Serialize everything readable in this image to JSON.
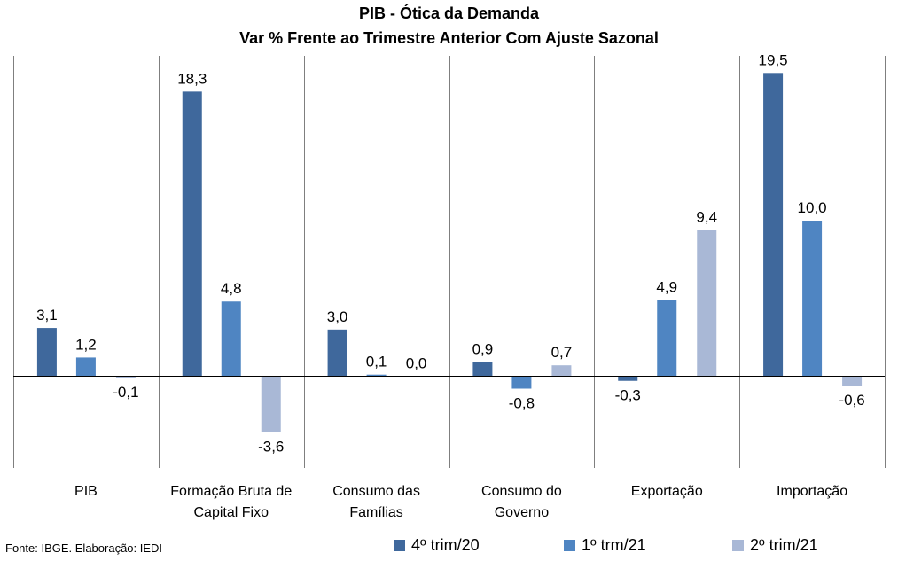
{
  "chart_data": {
    "type": "bar",
    "title": "PIB - Ótica da Demanda",
    "subtitle": "Var % Frente ao Trimestre Anterior Com Ajuste Sazonal",
    "categories": [
      [
        "PIB"
      ],
      [
        "Formação Bruta de",
        "Capital Fixo"
      ],
      [
        "Consumo das",
        "Famílias"
      ],
      [
        "Consumo do",
        "Governo"
      ],
      [
        "Exportação"
      ],
      [
        "Importação"
      ]
    ],
    "series": [
      {
        "name": "4º trim/20",
        "color": "#3f689c",
        "values": [
          3.1,
          18.3,
          3.0,
          0.9,
          -0.3,
          19.5
        ]
      },
      {
        "name": "1º trm/21",
        "color": "#4f85c2",
        "values": [
          1.2,
          4.8,
          0.1,
          -0.8,
          4.9,
          10.0
        ]
      },
      {
        "name": "2º trim/21",
        "color": "#a9b8d6",
        "values": [
          -0.1,
          -3.6,
          0.0,
          0.7,
          9.4,
          -0.6
        ]
      }
    ],
    "data_labels": [
      [
        "3,1",
        "18,3",
        "3,0",
        "0,9",
        "-0,3",
        "19,5"
      ],
      [
        "1,2",
        "4,8",
        "0,1",
        "-0,8",
        "4,9",
        "10,0"
      ],
      [
        "-0,1",
        "-3,6",
        "0,0",
        "0,7",
        "9,4",
        "-0,6"
      ]
    ],
    "xlabel": "",
    "ylabel": "",
    "ylim": [
      -5.9,
      20.6
    ],
    "grid": false,
    "category_dividers": true,
    "legend_position": "bottom"
  },
  "source": "Fonte: IBGE. Elaboração: IEDI"
}
